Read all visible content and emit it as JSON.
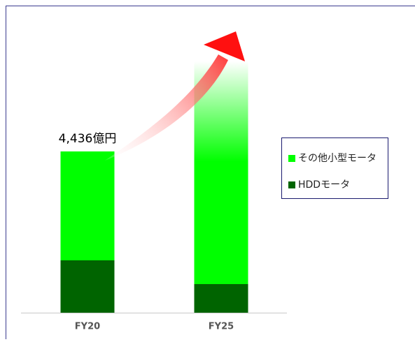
{
  "chart_data": {
    "type": "stacked_bar",
    "categories": [
      "FY20",
      "FY25"
    ],
    "series": [
      {
        "name": "HDDモータ",
        "color": "#006400",
        "values": [
          1440,
          787
        ]
      },
      {
        "name": "その他小型モータ",
        "color": "#00ff00",
        "values": [
          2996,
          6126
        ]
      }
    ],
    "annotation": "4,436億円",
    "ylim": [
      0,
      7200
    ]
  }
}
